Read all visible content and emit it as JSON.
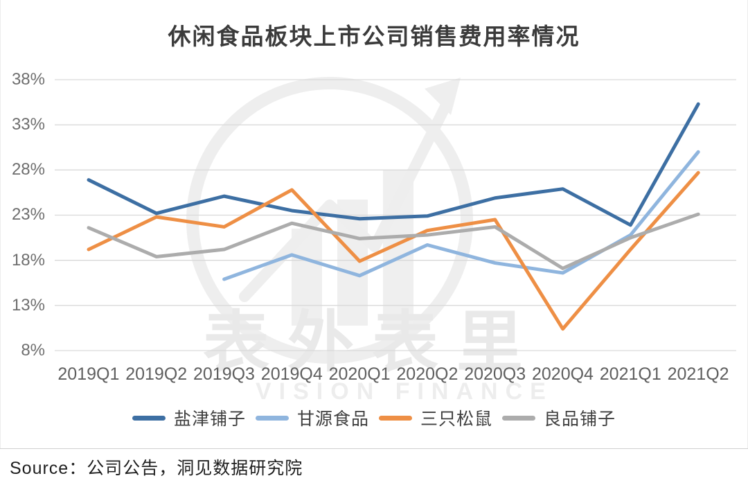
{
  "page": {
    "source": "Source：公司公告，洞见数据研究院"
  },
  "watermark": {
    "cn": "表外表里",
    "en": "VISION FINANCE"
  },
  "chart_data": {
    "type": "line",
    "title": "休闲食品板块上市公司销售费用率情况",
    "categories": [
      "2019Q1",
      "2019Q2",
      "2019Q3",
      "2019Q4",
      "2020Q1",
      "2020Q2",
      "2020Q3",
      "2020Q4",
      "2021Q1",
      "2021Q2"
    ],
    "series": [
      {
        "name": "盐津铺子",
        "color": "#3D6FA3",
        "values": [
          26.9,
          23.2,
          25.1,
          23.5,
          22.6,
          22.9,
          24.9,
          25.9,
          21.9,
          35.3
        ]
      },
      {
        "name": "甘源食品",
        "color": "#8FB5DE",
        "values": [
          null,
          null,
          15.9,
          18.6,
          16.3,
          19.7,
          17.7,
          16.6,
          20.8,
          30.0
        ]
      },
      {
        "name": "三只松鼠",
        "color": "#EE8F45",
        "values": [
          19.2,
          22.8,
          21.7,
          25.8,
          17.9,
          21.3,
          22.5,
          10.4,
          19.2,
          27.7
        ]
      },
      {
        "name": "良品铺子",
        "color": "#ACACAC",
        "values": [
          21.6,
          18.4,
          19.2,
          22.1,
          20.4,
          20.8,
          21.7,
          17.1,
          20.5,
          23.1
        ]
      }
    ],
    "ylabel": "",
    "xlabel": "",
    "ylim": [
      8,
      38
    ],
    "yticks": [
      "38%",
      "33%",
      "28%",
      "23%",
      "18%",
      "13%",
      "8%"
    ],
    "grid": "horizontal-only",
    "legend_position": "bottom",
    "gridline_color": "#D9D9D9"
  }
}
